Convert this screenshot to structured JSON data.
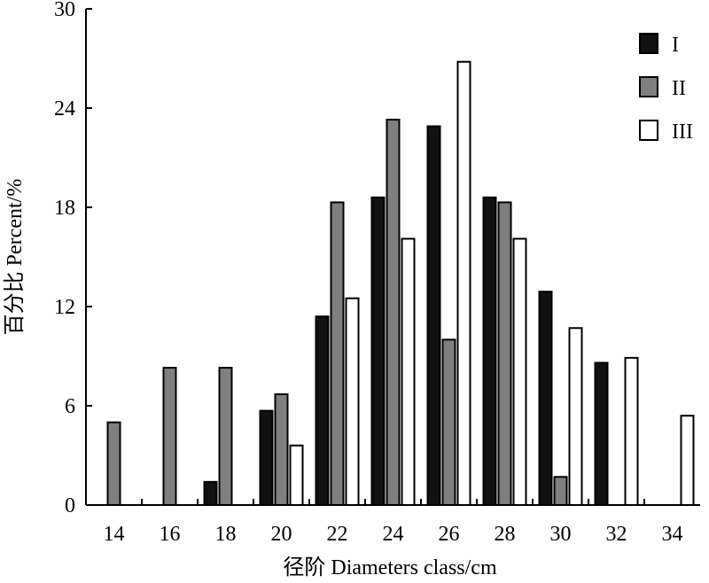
{
  "chart_data": {
    "type": "bar",
    "title": "",
    "xlabel": "径阶 Diameters class/cm",
    "ylabel": "百分比 Percent/%",
    "categories": [
      "14",
      "16",
      "18",
      "20",
      "22",
      "24",
      "26",
      "28",
      "30",
      "32",
      "34"
    ],
    "ylim": [
      0,
      30
    ],
    "yticks": [
      0,
      6,
      12,
      18,
      24,
      30
    ],
    "grid": false,
    "legend_position": "top-right",
    "series": [
      {
        "name": "I",
        "color": "#111111",
        "values": [
          0,
          0,
          1.4,
          5.7,
          11.4,
          18.6,
          22.9,
          18.6,
          12.9,
          8.6,
          0
        ]
      },
      {
        "name": "II",
        "color": "#7f7f7f",
        "values": [
          5.0,
          8.3,
          8.3,
          6.7,
          18.3,
          23.3,
          10.0,
          18.3,
          1.7,
          0,
          0
        ]
      },
      {
        "name": "III",
        "color": "#ffffff",
        "values": [
          0,
          0,
          0,
          3.6,
          12.5,
          16.1,
          26.8,
          16.1,
          10.7,
          8.9,
          5.4
        ]
      }
    ]
  }
}
